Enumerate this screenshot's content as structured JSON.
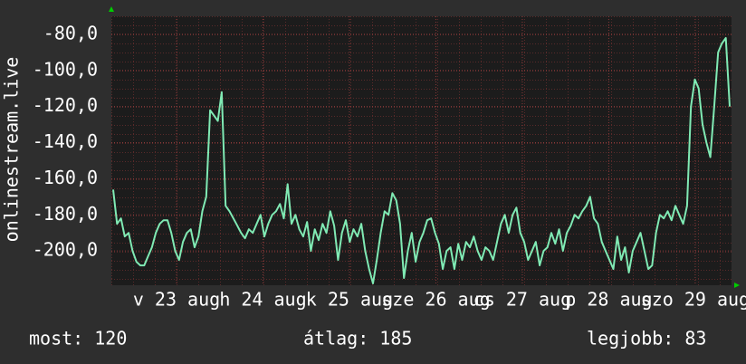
{
  "chart_data": {
    "type": "line",
    "y_label": "onlinestream.live",
    "ylim": [
      -219,
      -70
    ],
    "yticks": [
      {
        "value": -80,
        "label": "-80,0"
      },
      {
        "value": -100,
        "label": "-100,0"
      },
      {
        "value": -120,
        "label": "-120,0"
      },
      {
        "value": -140,
        "label": "-140,0"
      },
      {
        "value": -160,
        "label": "-160,0"
      },
      {
        "value": -180,
        "label": "-180,0"
      },
      {
        "value": -200,
        "label": "-200,0"
      }
    ],
    "xlim": [
      0.246,
      7.42
    ],
    "xticks": [
      {
        "value": 1,
        "label": "v 23 aug"
      },
      {
        "value": 2,
        "label": "h 24 aug"
      },
      {
        "value": 3,
        "label": "k 25 aug"
      },
      {
        "value": 4,
        "label": "sze 26 aug"
      },
      {
        "value": 5,
        "label": "cs 27 aug"
      },
      {
        "value": 6,
        "label": "p 28 aug"
      },
      {
        "value": 7,
        "label": "szo 29 aug"
      }
    ],
    "grid": true,
    "series": [
      {
        "color": "#80eab4",
        "values": [
          -166,
          -185,
          -182,
          -192,
          -190,
          -200,
          -206,
          -208,
          -208,
          -203,
          -198,
          -190,
          -185,
          -183,
          -183,
          -190,
          -200,
          -205,
          -195,
          -190,
          -188,
          -198,
          -192,
          -178,
          -170,
          -122,
          -125,
          -128,
          -112,
          -175,
          -178,
          -182,
          -186,
          -190,
          -193,
          -188,
          -190,
          -185,
          -180,
          -192,
          -185,
          -180,
          -178,
          -174,
          -182,
          -163,
          -185,
          -180,
          -188,
          -192,
          -184,
          -200,
          -188,
          -194,
          -185,
          -190,
          -178,
          -186,
          -205,
          -190,
          -183,
          -195,
          -188,
          -192,
          -185,
          -200,
          -210,
          -218,
          -205,
          -190,
          -178,
          -180,
          -168,
          -172,
          -185,
          -215,
          -200,
          -190,
          -206,
          -195,
          -190,
          -183,
          -182,
          -190,
          -196,
          -210,
          -200,
          -198,
          -210,
          -196,
          -205,
          -195,
          -198,
          -192,
          -200,
          -205,
          -198,
          -200,
          -205,
          -195,
          -185,
          -180,
          -190,
          -180,
          -176,
          -190,
          -195,
          -205,
          -200,
          -195,
          -208,
          -200,
          -198,
          -190,
          -196,
          -188,
          -200,
          -190,
          -186,
          -180,
          -182,
          -178,
          -175,
          -170,
          -182,
          -185,
          -195,
          -200,
          -205,
          -210,
          -192,
          -205,
          -198,
          -212,
          -200,
          -195,
          -190,
          -200,
          -210,
          -208,
          -190,
          -180,
          -182,
          -178,
          -183,
          -175,
          -180,
          -185,
          -175,
          -120,
          -105,
          -110,
          -130,
          -140,
          -148,
          -120,
          -90,
          -85,
          -82,
          -120
        ]
      }
    ],
    "stats": {
      "current": "most: 120",
      "average": "átlag: 185",
      "best": "legjobb: 83"
    }
  }
}
